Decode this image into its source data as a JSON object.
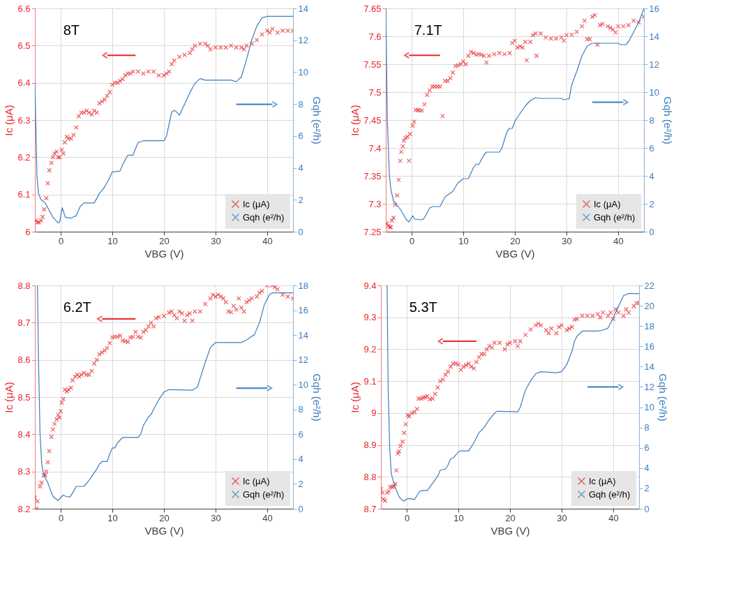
{
  "chart_data": [
    {
      "type": "scatter",
      "annotations": [
        "8T"
      ],
      "xlabel": "VBG (V)",
      "ylabel": "Ic (μA)",
      "y2label": "Gqh (e²/h)",
      "xlim": [
        -5,
        45
      ],
      "xticks": [
        0,
        10,
        20,
        30,
        40
      ],
      "ylim": [
        6,
        6.6
      ],
      "yticks": [
        6,
        6.1,
        6.2,
        6.3,
        6.4,
        6.5,
        6.6
      ],
      "y2lim": [
        0,
        14
      ],
      "y2ticks": [
        0,
        2,
        4,
        6,
        8,
        10,
        12,
        14
      ],
      "grid": true,
      "legend": "bottom right",
      "series": [
        {
          "name": "Ic (μA)",
          "color": "#e8262b",
          "marker": "cross",
          "x": [
            -4.8,
            -4.5,
            -4.2,
            -3.8,
            -3.5,
            -3.2,
            -2.8,
            -2.5,
            -2.2,
            -1.8,
            -1.5,
            -1.2,
            -0.8,
            -0.5,
            -0.2,
            0.2,
            0.5,
            0.8,
            1.2,
            1.5,
            2,
            2.5,
            3,
            3.5,
            4,
            4.5,
            5,
            5.5,
            6,
            6.5,
            7,
            7.5,
            8,
            8.5,
            9,
            9.5,
            10,
            10.5,
            11,
            11.5,
            12,
            12.5,
            13,
            13.5,
            14,
            15,
            16,
            17,
            18,
            19,
            20,
            20.5,
            21,
            21.5,
            22,
            23,
            24,
            25,
            25.5,
            26,
            27,
            28,
            28.5,
            29,
            30,
            31,
            32,
            33,
            34,
            35,
            35.5,
            36,
            37,
            38,
            39,
            40,
            40.5,
            41,
            42,
            43,
            44,
            45
          ],
          "values": [
            6.03,
            6.025,
            6.025,
            6.03,
            6.04,
            6.06,
            6.09,
            6.13,
            6.165,
            6.185,
            6.2,
            6.21,
            6.215,
            6.2,
            6.2,
            6.22,
            6.21,
            6.24,
            6.255,
            6.25,
            6.25,
            6.26,
            6.28,
            6.31,
            6.32,
            6.32,
            6.325,
            6.32,
            6.315,
            6.325,
            6.32,
            6.345,
            6.35,
            6.355,
            6.365,
            6.375,
            6.395,
            6.4,
            6.4,
            6.405,
            6.41,
            6.42,
            6.425,
            6.425,
            6.43,
            6.43,
            6.425,
            6.43,
            6.43,
            6.42,
            6.42,
            6.425,
            6.43,
            6.45,
            6.46,
            6.47,
            6.475,
            6.48,
            6.49,
            6.5,
            6.505,
            6.505,
            6.5,
            6.49,
            6.495,
            6.495,
            6.495,
            6.5,
            6.495,
            6.495,
            6.49,
            6.5,
            6.505,
            6.515,
            6.53,
            6.54,
            6.535,
            6.545,
            6.535,
            6.54,
            6.54,
            6.54
          ]
        },
        {
          "name": "Gqh (e²/h)",
          "color": "#3b7dbd",
          "type": "line",
          "axis": "y2",
          "line_style": "solid",
          "x": [
            -5,
            -4.6,
            -4.3,
            -3.8,
            -3,
            -2.5,
            -1.5,
            -0.5,
            -0.2,
            0.3,
            0.9,
            2,
            3,
            3.8,
            4.5,
            6.5,
            7.5,
            8.5,
            9.5,
            10,
            11.5,
            12,
            13,
            14,
            15,
            16,
            20,
            20.5,
            21.5,
            22,
            22.5,
            23,
            24,
            25,
            26,
            27,
            28,
            33,
            34,
            35,
            36,
            37,
            38,
            39,
            40,
            45
          ],
          "values": [
            9.4,
            3.5,
            2.4,
            2.0,
            1.8,
            1.5,
            0.9,
            0.55,
            0.6,
            1.5,
            0.9,
            0.85,
            1.0,
            1.6,
            1.8,
            1.8,
            2.4,
            2.8,
            3.4,
            3.75,
            3.8,
            4.2,
            4.8,
            4.8,
            5.6,
            5.7,
            5.7,
            6.0,
            7.5,
            7.6,
            7.5,
            7.3,
            8.0,
            8.7,
            9.3,
            9.6,
            9.5,
            9.5,
            9.4,
            9.7,
            10.8,
            12.0,
            12.9,
            13.4,
            13.5,
            13.5
          ]
        }
      ]
    },
    {
      "type": "scatter",
      "annotations": [
        "7.1T"
      ],
      "xlabel": "VBG (V)",
      "ylabel": "Ic (μA)",
      "y2label": "Gqh (e²/h)",
      "xlim": [
        -5,
        45
      ],
      "xticks": [
        0,
        10,
        20,
        30,
        40
      ],
      "ylim": [
        7.25,
        7.65
      ],
      "yticks": [
        7.25,
        7.3,
        7.35,
        7.4,
        7.45,
        7.5,
        7.55,
        7.6,
        7.65
      ],
      "y2lim": [
        0,
        16
      ],
      "y2ticks": [
        0,
        2,
        4,
        6,
        8,
        10,
        12,
        14,
        16
      ],
      "grid": true,
      "legend": "bottom right",
      "series": [
        {
          "name": "Ic (μA)",
          "color": "#e8262b",
          "marker": "cross",
          "x": [
            -4.8,
            -4.5,
            -4.2,
            -4,
            -3.8,
            -3.5,
            -3.2,
            -2.8,
            -2.5,
            -2.2,
            -2,
            -1.7,
            -1.5,
            -1.2,
            -0.8,
            -0.5,
            -0.3,
            0.2,
            0.5,
            0.8,
            1.2,
            1.5,
            2,
            2.5,
            3,
            3.5,
            4,
            4.5,
            5,
            5.5,
            6,
            6.5,
            7,
            7.5,
            8,
            8.5,
            9,
            9.5,
            10,
            10.5,
            11,
            11.5,
            12,
            12.5,
            13,
            13.5,
            14,
            14.5,
            15,
            16,
            17,
            18,
            19,
            19.5,
            20,
            20.5,
            21,
            21.5,
            22,
            22.3,
            23,
            23.5,
            24,
            24.2,
            25,
            26,
            27,
            28,
            29,
            29.5,
            30,
            31,
            32,
            33,
            33.5,
            34,
            34.5,
            35,
            35.5,
            36,
            36.5,
            37,
            38,
            38.5,
            39,
            39.5,
            40,
            41,
            42,
            43,
            44,
            45
          ],
          "values": [
            7.265,
            7.26,
            7.258,
            7.258,
            7.27,
            7.275,
            7.298,
            7.315,
            7.343,
            7.377,
            7.393,
            7.403,
            7.413,
            7.418,
            7.42,
            7.377,
            7.425,
            7.44,
            7.447,
            7.468,
            7.468,
            7.467,
            7.467,
            7.478,
            7.495,
            7.503,
            7.51,
            7.51,
            7.51,
            7.51,
            7.457,
            7.52,
            7.52,
            7.525,
            7.535,
            7.547,
            7.548,
            7.55,
            7.555,
            7.55,
            7.565,
            7.572,
            7.57,
            7.567,
            7.568,
            7.567,
            7.565,
            7.553,
            7.565,
            7.568,
            7.57,
            7.568,
            7.57,
            7.588,
            7.592,
            7.58,
            7.582,
            7.58,
            7.59,
            7.557,
            7.59,
            7.602,
            7.605,
            7.565,
            7.605,
            7.598,
            7.596,
            7.596,
            7.598,
            7.592,
            7.602,
            7.603,
            7.608,
            7.618,
            7.628,
            7.595,
            7.595,
            7.635,
            7.638,
            7.585,
            7.62,
            7.622,
            7.618,
            7.615,
            7.612,
            7.607,
            7.618,
            7.618,
            7.62,
            7.628,
            7.625,
            7.635
          ]
        },
        {
          "name": "Gqh (e²/h)",
          "color": "#3b7dbd",
          "type": "line",
          "axis": "y2",
          "line_style": "solid",
          "x": [
            -5,
            -4.7,
            -4.3,
            -4,
            -3.5,
            -3,
            -2,
            -1,
            -0.5,
            0,
            0.2,
            0.6,
            2,
            2.5,
            3.5,
            4,
            5.5,
            6.5,
            8,
            9,
            10,
            11,
            12,
            12.5,
            13,
            14,
            14.5,
            17,
            17.5,
            18.5,
            19,
            19.5,
            20,
            20.5,
            22,
            23,
            24,
            25,
            29,
            29.5,
            30,
            30.5,
            31,
            32,
            33,
            34,
            35,
            40,
            40.5,
            41.5,
            42,
            43,
            44,
            45
          ],
          "values": [
            16,
            8,
            4.0,
            3.0,
            2.2,
            2.0,
            1.5,
            0.85,
            0.7,
            1.0,
            1.15,
            0.9,
            0.85,
            1.0,
            1.7,
            1.8,
            1.8,
            2.5,
            2.9,
            3.5,
            3.8,
            3.8,
            4.6,
            4.85,
            4.8,
            5.5,
            5.7,
            5.7,
            6.0,
            7.2,
            7.4,
            7.4,
            7.9,
            8.2,
            9.0,
            9.4,
            9.6,
            9.55,
            9.55,
            9.45,
            9.5,
            9.5,
            10.5,
            11.5,
            12.6,
            13.3,
            13.5,
            13.5,
            13.4,
            13.4,
            13.6,
            14.3,
            15.0,
            16
          ]
        }
      ]
    },
    {
      "type": "scatter",
      "annotations": [
        "6.2T"
      ],
      "xlabel": "VBG (V)",
      "ylabel": "Ic (μA)",
      "y2label": "Gqh (e²/h)",
      "xlim": [
        -5,
        45
      ],
      "xticks": [
        0,
        10,
        20,
        30,
        40
      ],
      "ylim": [
        8.2,
        8.8
      ],
      "yticks": [
        8.2,
        8.3,
        8.4,
        8.5,
        8.6,
        8.7,
        8.8
      ],
      "y2lim": [
        0,
        18
      ],
      "y2ticks": [
        0,
        2,
        4,
        6,
        8,
        10,
        12,
        14,
        16,
        18
      ],
      "grid": true,
      "legend": "bottom right",
      "series": [
        {
          "name": "Ic (μA)",
          "color": "#e8262b",
          "marker": "cross",
          "x": [
            -5,
            -4.7,
            -4.5,
            -4,
            -3.7,
            -3.3,
            -3,
            -2.8,
            -2.5,
            -2.2,
            -1.8,
            -1.5,
            -1.2,
            -0.8,
            -0.5,
            -0.2,
            0,
            0.2,
            0.5,
            0.8,
            1.2,
            1.5,
            2,
            2.3,
            2.8,
            3.2,
            3.6,
            4,
            4.5,
            5,
            5.5,
            6,
            6.5,
            7,
            7.5,
            8,
            8.5,
            9,
            9.5,
            10,
            10.5,
            11,
            11.5,
            12,
            12.5,
            13,
            13.5,
            14,
            14.5,
            15,
            15.5,
            16,
            16.5,
            17,
            17.5,
            18,
            18.5,
            19,
            20,
            21,
            21.5,
            22,
            22.5,
            23,
            23.5,
            24,
            24.5,
            25,
            25.5,
            26,
            27,
            28,
            29,
            29.5,
            30,
            30.5,
            31,
            31.5,
            32,
            32.5,
            33,
            33.5,
            34,
            34.5,
            35,
            35.5,
            36,
            36.5,
            37,
            38,
            38.5,
            39,
            40,
            41,
            41.5,
            42,
            43,
            44,
            45
          ],
          "values": [
            8.23,
            8.2,
            8.22,
            8.26,
            8.27,
            8.29,
            8.29,
            8.3,
            8.325,
            8.355,
            8.393,
            8.413,
            8.428,
            8.44,
            8.452,
            8.445,
            8.462,
            8.485,
            8.495,
            8.52,
            8.515,
            8.52,
            8.525,
            8.545,
            8.555,
            8.56,
            8.555,
            8.56,
            8.565,
            8.56,
            8.56,
            8.57,
            8.59,
            8.6,
            8.615,
            8.62,
            8.625,
            8.632,
            8.645,
            8.66,
            8.662,
            8.662,
            8.665,
            8.652,
            8.65,
            8.648,
            8.66,
            8.662,
            8.675,
            8.662,
            8.66,
            8.675,
            8.68,
            8.69,
            8.7,
            8.69,
            8.712,
            8.715,
            8.718,
            8.727,
            8.73,
            8.72,
            8.712,
            8.73,
            8.725,
            8.705,
            8.72,
            8.725,
            8.705,
            8.73,
            8.73,
            8.75,
            8.765,
            8.775,
            8.77,
            8.775,
            8.77,
            8.765,
            8.755,
            8.73,
            8.728,
            8.745,
            8.735,
            8.765,
            8.74,
            8.73,
            8.755,
            8.76,
            8.765,
            8.77,
            8.78,
            8.785,
            8.8,
            8.8,
            8.795,
            8.79,
            8.775,
            8.77,
            8.765
          ]
        },
        {
          "name": "Gqh (e²/h)",
          "color": "#3b7dbd",
          "type": "line",
          "axis": "y2",
          "line_style": "solid",
          "x": [
            -4.5,
            -4.3,
            -4,
            -3.7,
            -3.5,
            -3,
            -2.5,
            -2,
            -1.5,
            -0.5,
            0,
            0.5,
            1,
            1.8,
            2.5,
            3,
            4.5,
            5.5,
            6.5,
            7,
            7.5,
            8,
            9,
            9.5,
            10,
            10.5,
            11,
            12,
            15,
            15.5,
            16,
            17,
            17.5,
            18,
            19,
            20,
            21,
            25.5,
            26.5,
            27,
            28,
            29,
            30,
            35,
            36,
            37,
            37.5,
            38.5,
            39.5,
            40.5,
            41,
            44,
            45
          ],
          "values": [
            18,
            12,
            6,
            3.8,
            3.1,
            2.5,
            2.1,
            1.5,
            1.0,
            0.65,
            0.9,
            1.1,
            1.0,
            0.95,
            1.4,
            1.8,
            1.8,
            2.3,
            2.9,
            3.2,
            3.6,
            3.8,
            3.8,
            4.4,
            4.9,
            4.9,
            5.3,
            5.75,
            5.75,
            6.0,
            6.7,
            7.4,
            7.6,
            8.0,
            8.8,
            9.4,
            9.6,
            9.55,
            9.8,
            10.5,
            11.8,
            13.0,
            13.4,
            13.4,
            13.6,
            13.9,
            14.0,
            15.0,
            16.5,
            17.3,
            17.4,
            17.4,
            17.4
          ]
        }
      ]
    },
    {
      "type": "scatter",
      "annotations": [
        "5.3T"
      ],
      "xlabel": "VBG (V)",
      "ylabel": "Ic (μA)",
      "y2label": "Gqh (e²/h)",
      "xlim": [
        -5,
        45
      ],
      "xticks": [
        0,
        10,
        20,
        30,
        40
      ],
      "ylim": [
        8.7,
        9.4
      ],
      "yticks": [
        8.7,
        8.8,
        8.9,
        9,
        9.1,
        9.2,
        9.3,
        9.4
      ],
      "y2lim": [
        0,
        22
      ],
      "y2ticks": [
        0,
        2,
        4,
        6,
        8,
        10,
        12,
        14,
        16,
        18,
        20,
        22
      ],
      "grid": true,
      "legend": "bottom right",
      "series": [
        {
          "name": "Ic (μA)",
          "color": "#e8262b",
          "marker": "cross",
          "x": [
            -5,
            -4.7,
            -4.5,
            -4.2,
            -3.8,
            -3.5,
            -3.2,
            -2.8,
            -2.5,
            -2.2,
            -2,
            -1.7,
            -1.5,
            -1.2,
            -0.8,
            -0.5,
            -0.2,
            0.2,
            0.5,
            1,
            1.5,
            2,
            2.3,
            2.8,
            3.2,
            3.6,
            4,
            4.5,
            5,
            5.5,
            6,
            6.5,
            7,
            7.5,
            8,
            8.5,
            9,
            9.5,
            10,
            10.5,
            11,
            11.5,
            12,
            12.5,
            13,
            13.5,
            14,
            14.5,
            15,
            15.5,
            16,
            16.5,
            17,
            18,
            19,
            19.5,
            20,
            21,
            21.5,
            22,
            23,
            24,
            25,
            25.5,
            26,
            27,
            27.5,
            28,
            29,
            29.5,
            30,
            31,
            31.5,
            32,
            32.5,
            33,
            34,
            35,
            36,
            37,
            37.5,
            38,
            39,
            39.5,
            40,
            40.5,
            41,
            42,
            42.5,
            43,
            44,
            44.5,
            45
          ],
          "values": [
            8.762,
            8.75,
            8.73,
            8.725,
            8.75,
            8.755,
            8.768,
            8.768,
            8.77,
            8.778,
            8.82,
            8.873,
            8.88,
            8.897,
            8.91,
            8.938,
            8.965,
            8.993,
            8.99,
            9.0,
            9.003,
            9.013,
            9.045,
            9.045,
            9.048,
            9.05,
            9.053,
            9.043,
            9.045,
            9.06,
            9.08,
            9.1,
            9.105,
            9.12,
            9.13,
            9.145,
            9.155,
            9.155,
            9.152,
            9.135,
            9.145,
            9.15,
            9.155,
            9.145,
            9.14,
            9.16,
            9.175,
            9.185,
            9.185,
            9.2,
            9.21,
            9.205,
            9.22,
            9.22,
            9.2,
            9.215,
            9.22,
            9.225,
            9.21,
            9.225,
            9.245,
            9.262,
            9.275,
            9.28,
            9.275,
            9.26,
            9.25,
            9.265,
            9.25,
            9.27,
            9.275,
            9.26,
            9.265,
            9.27,
            9.293,
            9.295,
            9.305,
            9.305,
            9.305,
            9.31,
            9.3,
            9.315,
            9.305,
            9.315,
            9.295,
            9.325,
            9.315,
            9.305,
            9.325,
            9.315,
            9.335,
            9.345,
            9.345
          ]
        },
        {
          "name": "Gqh (e²/h)",
          "color": "#3b7dbd",
          "type": "line",
          "axis": "y2",
          "line_style": "solid",
          "x": [
            -3.8,
            -3.6,
            -3.3,
            -3,
            -2.5,
            -2,
            -1.5,
            -1,
            -0.5,
            0,
            0.5,
            1.5,
            2.5,
            3,
            4,
            5,
            6,
            6.5,
            7.5,
            8,
            8.5,
            9,
            10,
            10.5,
            12,
            13,
            14,
            15,
            16,
            17,
            17.5,
            18,
            21.5,
            22,
            23,
            24,
            25,
            26,
            29,
            30,
            31,
            32,
            32.5,
            33,
            34,
            37,
            38,
            39,
            40,
            41,
            42,
            43,
            45
          ],
          "values": [
            22,
            12,
            6,
            3.5,
            2.5,
            1.8,
            1.2,
            0.9,
            0.75,
            0.95,
            1.0,
            0.9,
            1.7,
            1.8,
            1.8,
            2.5,
            3.2,
            3.8,
            3.9,
            4.3,
            4.9,
            5.0,
            5.6,
            5.7,
            5.7,
            6.5,
            7.5,
            8.0,
            8.8,
            9.4,
            9.6,
            9.6,
            9.55,
            10.0,
            11.7,
            12.6,
            13.3,
            13.5,
            13.4,
            13.5,
            14.2,
            15.5,
            16.5,
            17.0,
            17.5,
            17.5,
            17.6,
            17.8,
            18.8,
            19.9,
            21.0,
            21.2,
            21.2
          ]
        }
      ]
    }
  ]
}
